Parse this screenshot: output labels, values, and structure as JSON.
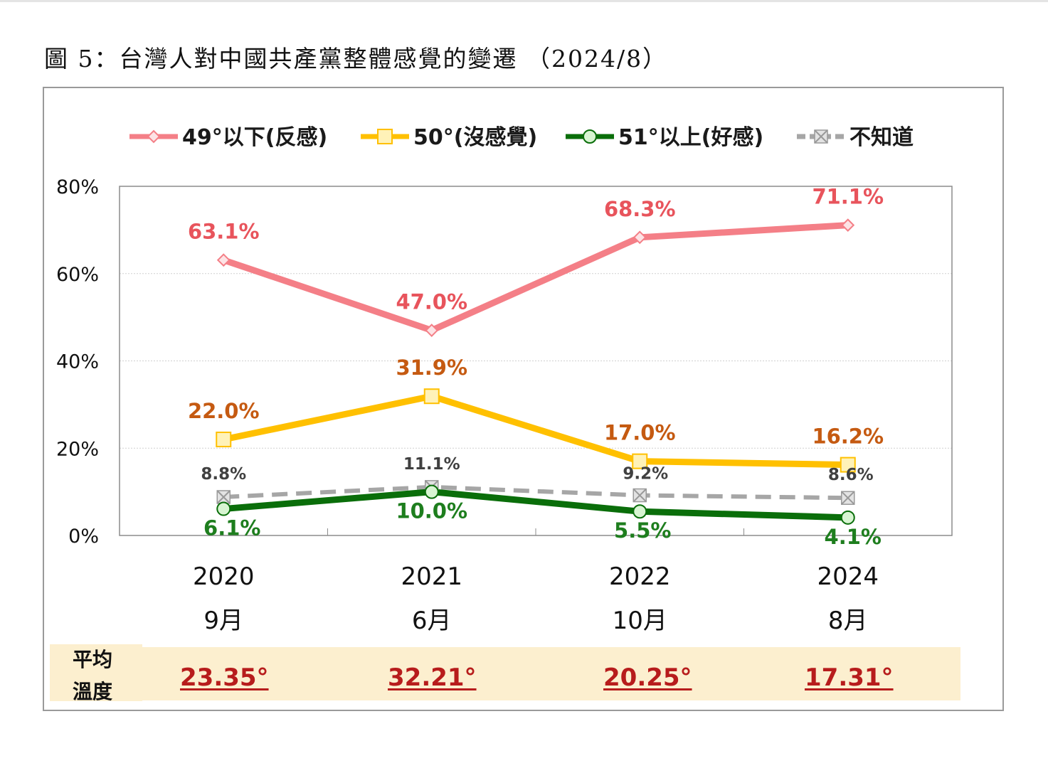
{
  "title": "圖 5：台灣人對中國共產黨整體感覺的變遷 （2024/8）",
  "chart_data": {
    "type": "line",
    "categories": [
      "2020",
      "2021",
      "2022",
      "2024"
    ],
    "category_sublabels": [
      "9月",
      "6月",
      "10月",
      "8月"
    ],
    "ylim": [
      0,
      80
    ],
    "yticks": [
      "0%",
      "20%",
      "40%",
      "60%",
      "80%"
    ],
    "grid": true,
    "legend_position": "top",
    "series": [
      {
        "name": "49°以下(反感)",
        "values": [
          63.1,
          47.0,
          68.3,
          71.1
        ],
        "labels": [
          "63.1%",
          "47.0%",
          "68.3%",
          "71.1%"
        ],
        "color": "#f47f87",
        "label_color": "#e8545c",
        "marker": "diamond"
      },
      {
        "name": "50°(沒感覺)",
        "values": [
          22.0,
          31.9,
          17.0,
          16.2
        ],
        "labels": [
          "22.0%",
          "31.9%",
          "17.0%",
          "16.2%"
        ],
        "color": "#ffc000",
        "label_color": "#c55a11",
        "marker": "square"
      },
      {
        "name": "51°以上(好感)",
        "values": [
          6.1,
          10.0,
          5.5,
          4.1
        ],
        "labels": [
          "6.1%",
          "10.0%",
          "5.5%",
          "4.1%"
        ],
        "color": "#0a6e0a",
        "label_color": "#1e7e1e",
        "marker": "circle"
      },
      {
        "name": "不知道",
        "values": [
          8.8,
          11.1,
          9.2,
          8.6
        ],
        "labels": [
          "8.8%",
          "11.1%",
          "9.2%",
          "8.6%"
        ],
        "color": "#a6a6a6",
        "label_color": "#404040",
        "marker": "x",
        "dashed": true
      }
    ]
  },
  "average": {
    "label_line1": "平均",
    "label_line2": "溫度",
    "values": [
      "23.35°",
      "32.21°",
      "20.25°",
      "17.31°"
    ]
  }
}
